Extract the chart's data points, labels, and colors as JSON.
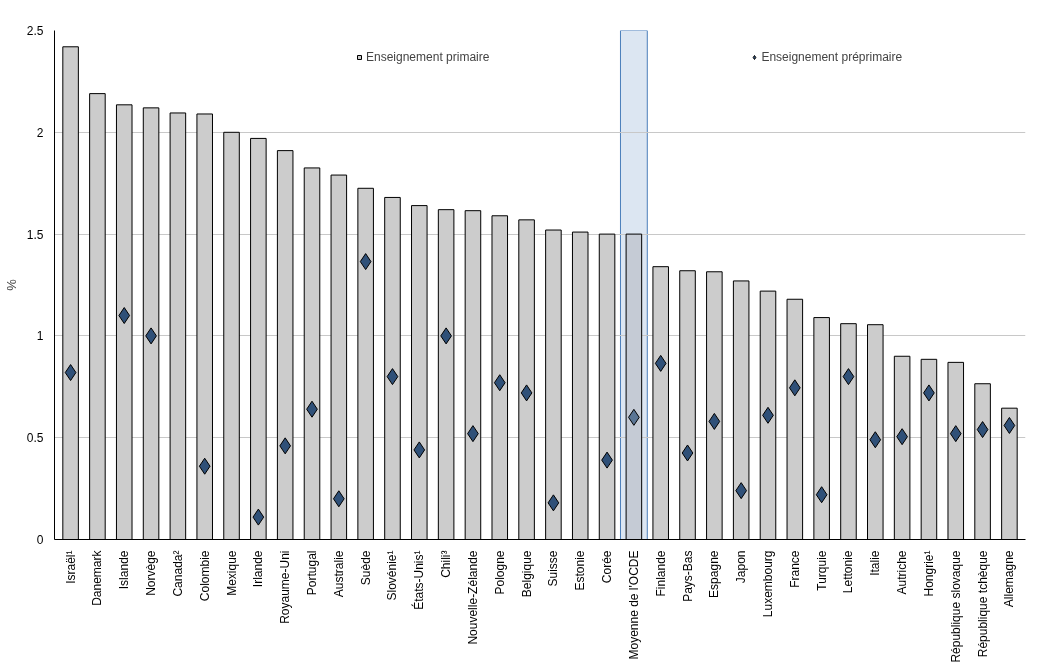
{
  "chart_data": {
    "type": "bar",
    "ylabel": "%",
    "categories": [
      "Israël¹",
      "Danemark",
      "Islande",
      "Norvège",
      "Canada²",
      "Colombie",
      "Mexique",
      "Irlande",
      "Royaume-Uni",
      "Portugal",
      "Australie",
      "Suède",
      "Slovénie¹",
      "États-Unis¹",
      "Chili³",
      "Nouvelle-Zélande",
      "Pologne",
      "Belgique",
      "Suisse",
      "Estonie",
      "Corée",
      "Moyenne de l'OCDE",
      "Finlande",
      "Pays-Bas",
      "Espagne",
      "Japon",
      "Luxembourg",
      "France",
      "Turquie",
      "Lettonie",
      "Italie",
      "Autriche",
      "Hongrie¹",
      "République slovaque",
      "République tchèque",
      "Allemagne"
    ],
    "series": [
      {
        "name": "Enseignement primaire",
        "type": "bar",
        "color": "#cccccc",
        "colors": [
          "#cccccc",
          "#cccccc",
          "#cccccc",
          "#cccccc",
          "#cccccc",
          "#cccccc",
          "#cccccc",
          "#cccccc",
          "#cccccc",
          "#cccccc",
          "#cccccc",
          "#cccccc",
          "#cccccc",
          "#cccccc",
          "#cccccc",
          "#cccccc",
          "#cccccc",
          "#cccccc",
          "#cccccc",
          "#cccccc",
          "#cccccc",
          "#c5cbd5",
          "#cccccc",
          "#cccccc",
          "#cccccc",
          "#cccccc",
          "#cccccc",
          "#cccccc",
          "#cccccc",
          "#cccccc",
          "#cccccc",
          "#cccccc",
          "#cccccc",
          "#cccccc",
          "#cccccc",
          "#cccccc"
        ],
        "values": [
          2.42,
          2.19,
          2.135,
          2.12,
          2.095,
          2.09,
          2.0,
          1.97,
          1.91,
          1.825,
          1.79,
          1.725,
          1.68,
          1.64,
          1.62,
          1.615,
          1.59,
          1.57,
          1.52,
          1.51,
          1.5,
          1.5,
          1.34,
          1.32,
          1.315,
          1.27,
          1.22,
          1.18,
          1.09,
          1.06,
          1.055,
          0.9,
          0.885,
          0.87,
          0.765,
          0.645
        ]
      },
      {
        "name": "Enseignement préprimaire",
        "type": "scatter",
        "marker": "diamond",
        "color": "#2f5078",
        "colors": [
          "#2f5078",
          "#2f5078",
          "#2f5078",
          "#2f5078",
          "#2f5078",
          "#2f5078",
          "#2f5078",
          "#2f5078",
          "#2f5078",
          "#2f5078",
          "#2f5078",
          "#2f5078",
          "#2f5078",
          "#2f5078",
          "#2f5078",
          "#2f5078",
          "#2f5078",
          "#2f5078",
          "#2f5078",
          "#2f5078",
          "#2f5078",
          "#5a7594",
          "#2f5078",
          "#2f5078",
          "#2f5078",
          "#2f5078",
          "#2f5078",
          "#2f5078",
          "#2f5078",
          "#2f5078",
          "#2f5078",
          "#2f5078",
          "#2f5078",
          "#2f5078",
          "#2f5078",
          "#2f5078"
        ],
        "values": [
          0.82,
          null,
          1.1,
          1.0,
          null,
          0.36,
          null,
          0.11,
          0.46,
          0.64,
          0.2,
          1.365,
          0.8,
          0.44,
          1.0,
          0.52,
          0.77,
          0.72,
          0.18,
          null,
          0.39,
          0.6,
          0.865,
          0.425,
          0.58,
          0.24,
          0.61,
          0.745,
          0.22,
          0.8,
          0.49,
          0.505,
          0.72,
          0.52,
          0.54,
          0.56
        ]
      }
    ],
    "bands": [
      {
        "axis": "x",
        "from": "Moyenne de l'OCDE",
        "to": "Moyenne de l'OCDE",
        "color": "#dce6f2"
      }
    ],
    "ylim": [
      0,
      2.5
    ],
    "yticks": [
      0,
      0.5,
      1,
      1.5,
      2,
      2.5
    ],
    "grid": "y",
    "legend": "top"
  }
}
